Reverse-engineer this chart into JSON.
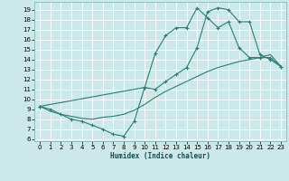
{
  "xlabel": "Humidex (Indice chaleur)",
  "bg_color": "#cce8e8",
  "grid_color": "#ffffff",
  "line_color": "#2e7d72",
  "xlim": [
    -0.5,
    23.5
  ],
  "ylim": [
    5.8,
    19.8
  ],
  "yticks": [
    6,
    7,
    8,
    9,
    10,
    11,
    12,
    13,
    14,
    15,
    16,
    17,
    18,
    19
  ],
  "xticks": [
    0,
    1,
    2,
    3,
    4,
    5,
    6,
    7,
    8,
    9,
    10,
    11,
    12,
    13,
    14,
    15,
    16,
    17,
    18,
    19,
    20,
    21,
    22,
    23
  ],
  "line1_x": [
    0,
    1,
    2,
    3,
    4,
    5,
    6,
    7,
    8,
    9,
    10,
    11,
    12,
    13,
    14,
    15,
    16,
    17,
    18,
    19,
    20,
    21,
    22,
    23
  ],
  "line1_y": [
    9.3,
    9.0,
    8.5,
    8.0,
    7.8,
    7.4,
    7.0,
    6.5,
    6.3,
    7.8,
    11.2,
    14.6,
    16.4,
    17.2,
    17.2,
    19.2,
    18.2,
    17.2,
    17.8,
    15.2,
    14.2,
    14.2,
    14.2,
    13.3
  ],
  "line2_x": [
    0,
    1,
    2,
    3,
    4,
    5,
    6,
    7,
    8,
    9,
    10,
    11,
    12,
    13,
    14,
    15,
    16,
    17,
    18,
    19,
    20,
    21,
    22,
    23
  ],
  "line2_y": [
    9.3,
    8.8,
    8.5,
    8.3,
    8.1,
    8.0,
    8.2,
    8.3,
    8.5,
    8.9,
    9.5,
    10.2,
    10.8,
    11.3,
    11.8,
    12.3,
    12.8,
    13.2,
    13.5,
    13.8,
    14.0,
    14.2,
    14.5,
    13.3
  ],
  "line3_x": [
    0,
    10,
    11,
    12,
    13,
    14,
    15,
    16,
    17,
    18,
    19,
    20,
    21,
    22,
    23
  ],
  "line3_y": [
    9.3,
    11.2,
    11.0,
    11.8,
    12.5,
    13.2,
    15.2,
    18.8,
    19.2,
    19.0,
    17.8,
    17.8,
    14.5,
    14.0,
    13.3
  ]
}
